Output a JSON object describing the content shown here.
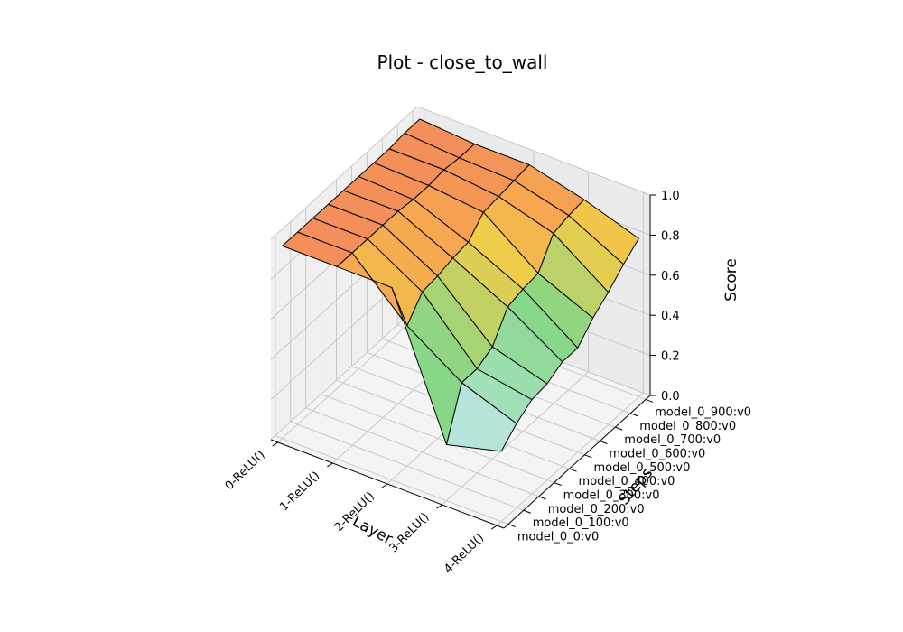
{
  "chart_data": {
    "type": "surface3d",
    "title": "Plot - close_to_wall",
    "xlabel": "Layer",
    "ylabel": "Steps",
    "zlabel": "Score",
    "x_categories": [
      "0-ReLU()",
      "1-ReLU()",
      "2-ReLU()",
      "3-ReLU()",
      "4-ReLU()"
    ],
    "y_categories": [
      "model_0_0:v0",
      "model_0_100:v0",
      "model_0_200:v0",
      "model_0_300:v0",
      "model_0_400:v0",
      "model_0_500:v0",
      "model_0_600:v0",
      "model_0_700:v0",
      "model_0_800:v0",
      "model_0_900:v0"
    ],
    "z_ticks": [
      "0.0",
      "0.2",
      "0.4",
      "0.6",
      "0.8",
      "1.0"
    ],
    "zlim": [
      0,
      1
    ],
    "grid": true,
    "colormap": {
      "low": "#cce5ff",
      "mid_low": "#a6e3c4",
      "mid": "#87d686",
      "mid_high": "#f0cd4a",
      "high": "#f08060"
    },
    "values": [
      [
        0.96,
        0.96,
        0.96,
        0.96,
        0.96,
        0.96,
        0.96,
        0.96,
        0.97,
        0.97
      ],
      [
        0.96,
        0.96,
        0.96,
        0.96,
        0.96,
        0.95,
        0.95,
        0.96,
        0.95,
        0.95
      ],
      [
        0.96,
        0.7,
        0.8,
        0.81,
        0.83,
        0.84,
        0.92,
        0.93,
        0.94,
        0.95
      ],
      [
        0.28,
        0.52,
        0.52,
        0.56,
        0.69,
        0.71,
        0.72,
        0.85,
        0.87,
        0.88
      ],
      [
        0.35,
        0.42,
        0.47,
        0.48,
        0.52,
        0.52,
        0.6,
        0.66,
        0.73,
        0.79
      ]
    ]
  }
}
